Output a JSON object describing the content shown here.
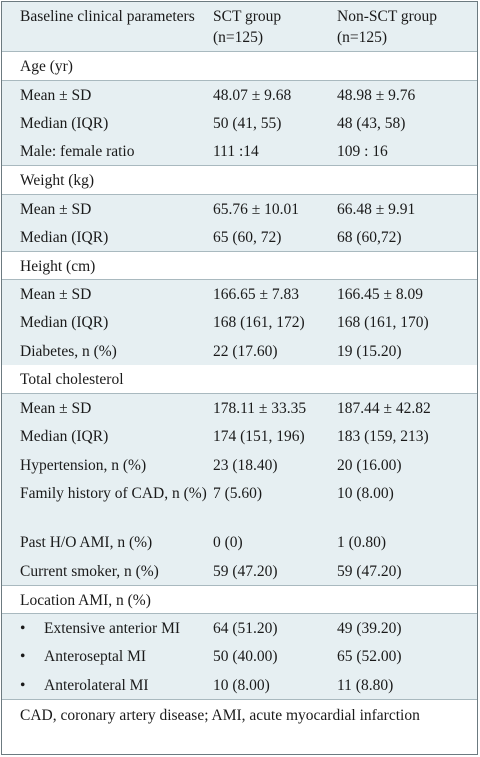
{
  "header": {
    "col1": "Baseline clinical parameters",
    "col2": "SCT group (n=125)",
    "col3": "Non-SCT group (n=125)"
  },
  "rows": [
    {
      "label": "Age (yr)",
      "sct": "",
      "nonsct": ""
    },
    {
      "label": "Mean ± SD",
      "sct": "48.07 ± 9.68",
      "nonsct": "48.98 ± 9.76"
    },
    {
      "label": "Median (IQR)",
      "sct": "50 (41, 55)",
      "nonsct": "48 (43, 58)"
    },
    {
      "label": "Male: female ratio",
      "sct": "111 :14",
      "nonsct": "109 : 16"
    },
    {
      "label": "Weight (kg)",
      "sct": "",
      "nonsct": ""
    },
    {
      "label": "Mean ± SD",
      "sct": "65.76 ± 10.01",
      "nonsct": "66.48 ± 9.91"
    },
    {
      "label": "Median (IQR)",
      "sct": "65 (60, 72)",
      "nonsct": "68 (60,72)"
    },
    {
      "label": "Height (cm)",
      "sct": "",
      "nonsct": ""
    },
    {
      "label": "Mean ± SD",
      "sct": "166.65 ± 7.83",
      "nonsct": "166.45 ± 8.09"
    },
    {
      "label": "Median (IQR)",
      "sct": "168 (161, 172)",
      "nonsct": "168 (161, 170)"
    },
    {
      "label": "Diabetes, n (%)",
      "sct": "22 (17.60)",
      "nonsct": "19 (15.20)"
    },
    {
      "label": "Total cholesterol",
      "sct": "",
      "nonsct": ""
    },
    {
      "label": "Mean ± SD",
      "sct": "178.11 ± 33.35",
      "nonsct": "187.44 ± 42.82"
    },
    {
      "label": "Median (IQR)",
      "sct": "174 (151, 196)",
      "nonsct": "183 (159, 213)"
    },
    {
      "label": "Hypertension, n (%)",
      "sct": "23 (18.40)",
      "nonsct": "20 (16.00)"
    },
    {
      "label": "Family history of CAD, n (%)",
      "sct": "7 (5.60)",
      "nonsct": "10 (8.00)"
    },
    {
      "label": "Past H/O AMI, n (%)",
      "sct": "0 (0)",
      "nonsct": "1 (0.80)"
    },
    {
      "label": "Current smoker, n (%)",
      "sct": "59 (47.20)",
      "nonsct": "59 (47.20)"
    },
    {
      "label": "Location AMI, n (%)",
      "sct": "",
      "nonsct": ""
    },
    {
      "label": "Extensive anterior MI",
      "sct": "64 (51.20)",
      "nonsct": "49 (39.20)"
    },
    {
      "label": "Anteroseptal MI",
      "sct": "50 (40.00)",
      "nonsct": "65 (52.00)"
    },
    {
      "label": "Anterolateral MI",
      "sct": "10 (8.00)",
      "nonsct": "11 (8.80)"
    }
  ],
  "bullet": "•",
  "footnote": "CAD, coronary artery disease; AMI, acute myocardial infarction"
}
